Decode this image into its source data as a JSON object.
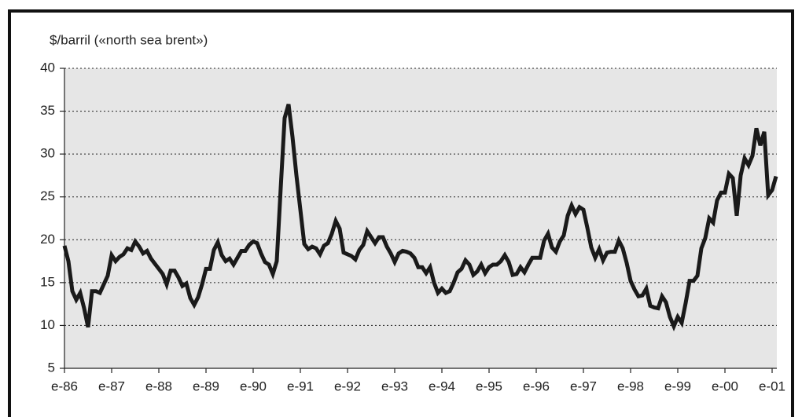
{
  "chart_data": {
    "type": "line",
    "y_label": "$/barril («north sea brent»)",
    "categories": [
      "e-86",
      null,
      null,
      null,
      null,
      null,
      null,
      null,
      null,
      null,
      null,
      null,
      "e-87",
      null,
      null,
      null,
      null,
      null,
      null,
      null,
      null,
      null,
      null,
      null,
      "e-88",
      null,
      null,
      null,
      null,
      null,
      null,
      null,
      null,
      null,
      null,
      null,
      "e-89",
      null,
      null,
      null,
      null,
      null,
      null,
      null,
      null,
      null,
      null,
      null,
      "e-90",
      null,
      null,
      null,
      null,
      null,
      null,
      null,
      null,
      null,
      null,
      null,
      "e-91",
      null,
      null,
      null,
      null,
      null,
      null,
      null,
      null,
      null,
      null,
      null,
      "e-92",
      null,
      null,
      null,
      null,
      null,
      null,
      null,
      null,
      null,
      null,
      null,
      "e-93",
      null,
      null,
      null,
      null,
      null,
      null,
      null,
      null,
      null,
      null,
      null,
      "e-94",
      null,
      null,
      null,
      null,
      null,
      null,
      null,
      null,
      null,
      null,
      null,
      "e-95",
      null,
      null,
      null,
      null,
      null,
      null,
      null,
      null,
      null,
      null,
      null,
      "e-96",
      null,
      null,
      null,
      null,
      null,
      null,
      null,
      null,
      null,
      null,
      null,
      "e-97",
      null,
      null,
      null,
      null,
      null,
      null,
      null,
      null,
      null,
      null,
      null,
      "e-98",
      null,
      null,
      null,
      null,
      null,
      null,
      null,
      null,
      null,
      null,
      null,
      "e-99",
      null,
      null,
      null,
      null,
      null,
      null,
      null,
      null,
      null,
      null,
      null,
      "e-00",
      null,
      null,
      null,
      null,
      null,
      null,
      null,
      null,
      null,
      null,
      null,
      "e-01",
      null
    ],
    "values": [
      19.3,
      17.5,
      14,
      13,
      13.8,
      12,
      9.8,
      14,
      14,
      13.8,
      14.8,
      15.8,
      18.2,
      17.5,
      18,
      18.3,
      19,
      18.8,
      19.8,
      19.2,
      18.4,
      18.7,
      17.8,
      17.2,
      16.6,
      16,
      14.8,
      16.4,
      16.4,
      15.6,
      14.6,
      14.9,
      13.2,
      12.4,
      13.3,
      14.8,
      16.6,
      16.6,
      18.8,
      19.7,
      18.2,
      17.5,
      17.8,
      17.1,
      17.9,
      18.7,
      18.7,
      19.4,
      19.8,
      19.6,
      18.4,
      17.4,
      17.1,
      16,
      17.5,
      26,
      34.2,
      35.8,
      32,
      27.5,
      23.5,
      19.5,
      18.9,
      19.2,
      19,
      18.3,
      19.3,
      19.6,
      20.7,
      22.2,
      21.3,
      18.5,
      18.3,
      18.1,
      17.7,
      18.8,
      19.4,
      21,
      20.3,
      19.6,
      20.3,
      20.3,
      19.2,
      18.4,
      17.4,
      18.4,
      18.7,
      18.6,
      18.4,
      17.9,
      16.8,
      16.8,
      16.1,
      16.8,
      15,
      13.8,
      14.3,
      13.8,
      14,
      15,
      16.2,
      16.6,
      17.6,
      17.1,
      15.9,
      16.3,
      17.1,
      16.1,
      16.8,
      17.1,
      17.1,
      17.5,
      18.2,
      17.4,
      15.9,
      16,
      16.8,
      16.2,
      17.1,
      17.9,
      17.9,
      17.9,
      19.9,
      20.7,
      19.1,
      18.6,
      19.8,
      20.5,
      22.8,
      24,
      23,
      23.8,
      23.5,
      21.4,
      19.1,
      17.9,
      18.9,
      17.6,
      18.5,
      18.6,
      18.6,
      19.9,
      19,
      17.3,
      15.2,
      14.2,
      13.4,
      13.5,
      14.3,
      12.3,
      12.1,
      12,
      13.4,
      12.7,
      11,
      9.9,
      11,
      10.3,
      12.6,
      15.2,
      15.2,
      15.8,
      19,
      20.2,
      22.5,
      22,
      24.6,
      25.5,
      25.5,
      27.7,
      27.2,
      22.8,
      27.5,
      29.5,
      28.7,
      29.8,
      33,
      31,
      32.6,
      25.2,
      25.8,
      27.4
    ],
    "color": "#1a1a1a",
    "ylim": [
      5,
      40
    ],
    "yticks": [
      5,
      10,
      15,
      20,
      25,
      30,
      35,
      40
    ],
    "grid": true
  }
}
